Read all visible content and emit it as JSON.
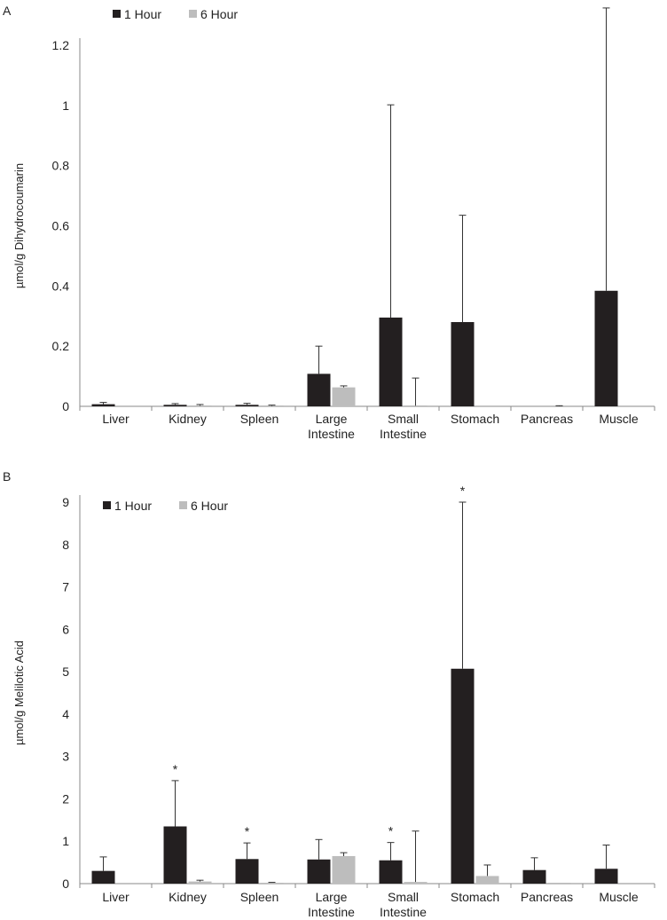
{
  "colors": {
    "one_hour": "#231f20",
    "six_hour": "#bdbdbd",
    "axis": "#888888",
    "text": "#222222"
  },
  "chart_data": [
    {
      "type": "bar",
      "panel_label": "A",
      "ylabel": "µmol/g Dihydrocoumarin",
      "xlabel": "",
      "ylim": [
        0,
        1.3
      ],
      "yticks": [
        0,
        0.2,
        0.4,
        0.6,
        0.8,
        1,
        1.2
      ],
      "ytick_labels": [
        "0",
        "0.2",
        "0.4",
        "0.6",
        "0.8",
        "1",
        "1.2"
      ],
      "categories": [
        [
          "Liver"
        ],
        [
          "Kidney"
        ],
        [
          "Spleen"
        ],
        [
          "Large",
          "Intestine"
        ],
        [
          "Small",
          "Intestine"
        ],
        [
          "Stomach"
        ],
        [
          "Pancreas"
        ],
        [
          "Muscle"
        ]
      ],
      "legend": {
        "position": "top-left",
        "entries": [
          "1 Hour",
          "6 Hour"
        ]
      },
      "series": [
        {
          "name": "1 Hour",
          "values": [
            0.007,
            0.005,
            0.005,
            0.108,
            0.295,
            0.28,
            0.0,
            0.384
          ],
          "error": [
            0.006,
            0.004,
            0.005,
            0.092,
            0.707,
            0.355,
            0.0,
            0.94
          ]
        },
        {
          "name": "6 Hour",
          "values": [
            0.0,
            0.002,
            0.001,
            0.063,
            0.002,
            0.0,
            0.0,
            0.0
          ],
          "error": [
            0.0,
            0.004,
            0.003,
            0.005,
            0.092,
            0.0,
            0.002,
            0.0
          ]
        }
      ],
      "annotations": [
        null,
        null,
        null,
        null,
        null,
        null,
        null,
        null
      ]
    },
    {
      "type": "bar",
      "panel_label": "B",
      "ylabel": "µmol/g Melilotic Acid",
      "xlabel": "",
      "ylim": [
        0,
        9.5
      ],
      "yticks": [
        0,
        1,
        2,
        3,
        4,
        5,
        6,
        7,
        8,
        9
      ],
      "ytick_labels": [
        "0",
        "1",
        "2",
        "3",
        "4",
        "5",
        "6",
        "7",
        "8",
        "9"
      ],
      "categories": [
        [
          "Liver"
        ],
        [
          "Kidney"
        ],
        [
          "Spleen"
        ],
        [
          "Large",
          "Intestine"
        ],
        [
          "Small",
          "Intestine"
        ],
        [
          "Stomach"
        ],
        [
          "Pancreas"
        ],
        [
          "Muscle"
        ]
      ],
      "legend": {
        "position": "top-left",
        "entries": [
          "1 Hour",
          "6 Hour"
        ]
      },
      "series": [
        {
          "name": "1 Hour",
          "values": [
            0.3,
            1.35,
            0.58,
            0.57,
            0.55,
            5.07,
            0.32,
            0.35
          ],
          "error": [
            0.33,
            1.08,
            0.38,
            0.47,
            0.42,
            3.93,
            0.29,
            0.56
          ]
        },
        {
          "name": "6 Hour",
          "values": [
            0.0,
            0.05,
            0.02,
            0.65,
            0.04,
            0.18,
            0.02,
            0.0
          ],
          "error": [
            0.0,
            0.03,
            0.01,
            0.08,
            1.2,
            0.26,
            0.0,
            0.0
          ]
        }
      ],
      "annotations": [
        null,
        "*",
        "*",
        null,
        "*",
        "*",
        null,
        null
      ]
    }
  ]
}
